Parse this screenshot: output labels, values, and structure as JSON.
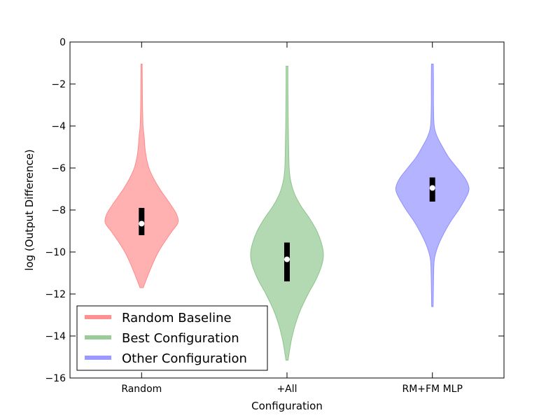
{
  "chart_data": {
    "type": "violin",
    "xlabel": "Configuration",
    "ylabel": "log (Output Difference)",
    "ylim": [
      -16,
      0
    ],
    "yticks": [
      0,
      -2,
      -4,
      -6,
      -8,
      -10,
      -12,
      -14,
      -16
    ],
    "ytick_labels": [
      "0",
      "−2",
      "−4",
      "−6",
      "−8",
      "−10",
      "−12",
      "−14",
      "−16"
    ],
    "categories": [
      "Random",
      "+All",
      "RM+FM MLP"
    ],
    "grid": false,
    "legend": {
      "placement": "lower-left",
      "entries": [
        {
          "label": "Random Baseline",
          "color": "#ff9090"
        },
        {
          "label": "Best Configuration",
          "color": "#99cc99"
        },
        {
          "label": "Other Configuration",
          "color": "#9999ff"
        }
      ]
    },
    "series": [
      {
        "category": "Random",
        "fill": "#ffb0b0",
        "stroke": "#ff8a8a",
        "median": -8.65,
        "q1": -9.2,
        "q3": -7.9,
        "min": -11.7,
        "max": -1.05,
        "profile": [
          [
            -11.7,
            0.045
          ],
          [
            -11.4,
            0.11
          ],
          [
            -11.0,
            0.2
          ],
          [
            -10.5,
            0.32
          ],
          [
            -10.0,
            0.46
          ],
          [
            -9.5,
            0.64
          ],
          [
            -9.0,
            0.84
          ],
          [
            -8.6,
            1.0
          ],
          [
            -8.2,
            0.96
          ],
          [
            -7.8,
            0.82
          ],
          [
            -7.4,
            0.66
          ],
          [
            -7.0,
            0.5
          ],
          [
            -6.5,
            0.33
          ],
          [
            -6.0,
            0.2
          ],
          [
            -5.5,
            0.13
          ],
          [
            -5.0,
            0.09
          ],
          [
            -4.5,
            0.07
          ],
          [
            -4.0,
            0.04
          ],
          [
            -3.0,
            0.025
          ],
          [
            -2.0,
            0.02
          ],
          [
            -1.05,
            0.015
          ]
        ]
      },
      {
        "category": "+All",
        "fill": "#b3d9b3",
        "stroke": "#8fc48f",
        "median": -10.35,
        "q1": -11.4,
        "q3": -9.55,
        "min": -15.15,
        "max": -1.15,
        "profile": [
          [
            -15.15,
            0.03
          ],
          [
            -14.8,
            0.06
          ],
          [
            -14.2,
            0.12
          ],
          [
            -13.5,
            0.22
          ],
          [
            -12.8,
            0.36
          ],
          [
            -12.0,
            0.58
          ],
          [
            -11.3,
            0.8
          ],
          [
            -10.6,
            0.96
          ],
          [
            -10.1,
            1.0
          ],
          [
            -9.6,
            0.95
          ],
          [
            -9.0,
            0.82
          ],
          [
            -8.4,
            0.62
          ],
          [
            -7.8,
            0.38
          ],
          [
            -7.2,
            0.2
          ],
          [
            -6.6,
            0.1
          ],
          [
            -6.0,
            0.06
          ],
          [
            -5.0,
            0.045
          ],
          [
            -4.0,
            0.035
          ],
          [
            -3.0,
            0.03
          ],
          [
            -2.0,
            0.025
          ],
          [
            -1.15,
            0.025
          ]
        ]
      },
      {
        "category": "RM+FM MLP",
        "fill": "#b3b3ff",
        "stroke": "#9090ff",
        "median": -6.95,
        "q1": -7.6,
        "q3": -6.45,
        "min": -12.6,
        "max": -1.05,
        "profile": [
          [
            -12.6,
            0.02
          ],
          [
            -12.0,
            0.025
          ],
          [
            -11.0,
            0.035
          ],
          [
            -10.4,
            0.05
          ],
          [
            -10.0,
            0.1
          ],
          [
            -9.6,
            0.18
          ],
          [
            -9.0,
            0.35
          ],
          [
            -8.5,
            0.52
          ],
          [
            -8.0,
            0.72
          ],
          [
            -7.6,
            0.86
          ],
          [
            -7.2,
            0.98
          ],
          [
            -6.9,
            1.0
          ],
          [
            -6.5,
            0.9
          ],
          [
            -6.0,
            0.68
          ],
          [
            -5.5,
            0.45
          ],
          [
            -5.0,
            0.28
          ],
          [
            -4.5,
            0.13
          ],
          [
            -4.0,
            0.05
          ],
          [
            -3.0,
            0.03
          ],
          [
            -2.0,
            0.03
          ],
          [
            -1.05,
            0.025
          ]
        ]
      }
    ]
  }
}
